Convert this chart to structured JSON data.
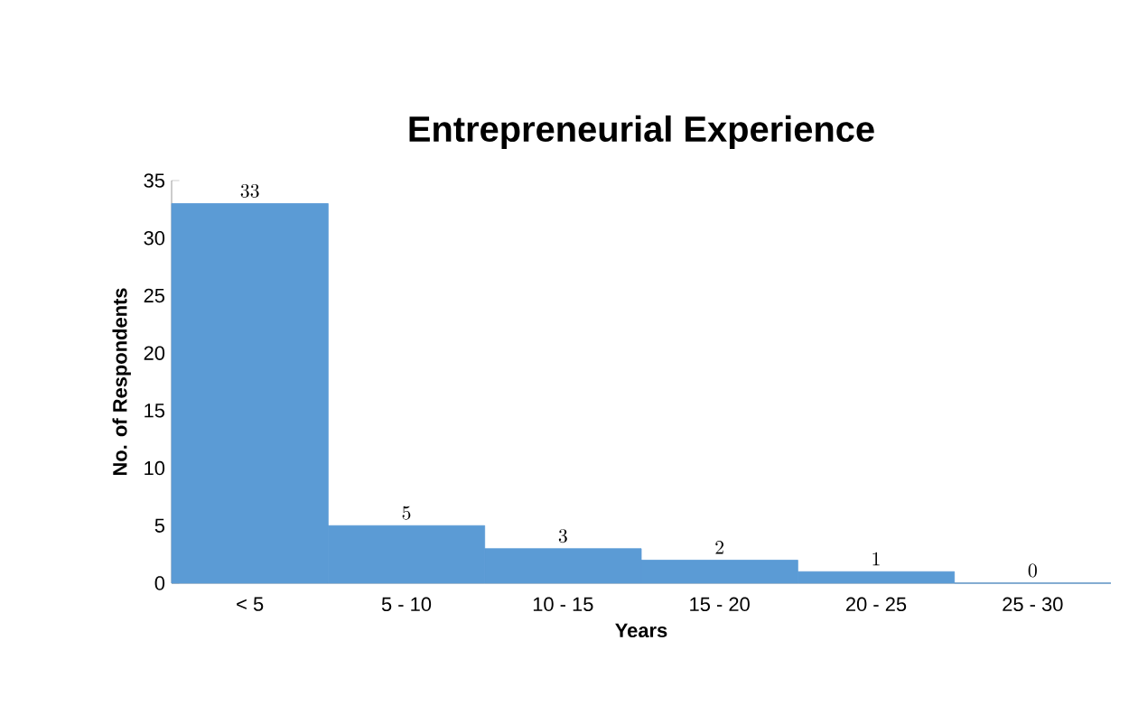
{
  "chart_data": {
    "type": "bar",
    "title": "Entrepreneurial Experience",
    "xlabel": "Years",
    "ylabel": "No. of Respondents",
    "categories": [
      "< 5",
      "5 - 10",
      "10 - 15",
      "15 - 20",
      "20 - 25",
      "25 - 30"
    ],
    "values": [
      33,
      5,
      3,
      2,
      1,
      0
    ],
    "color": "#5b9bd5",
    "ylim": [
      0,
      35
    ],
    "yticks": [
      0,
      5,
      10,
      15,
      20,
      25,
      30,
      35
    ],
    "data_labels": true
  }
}
